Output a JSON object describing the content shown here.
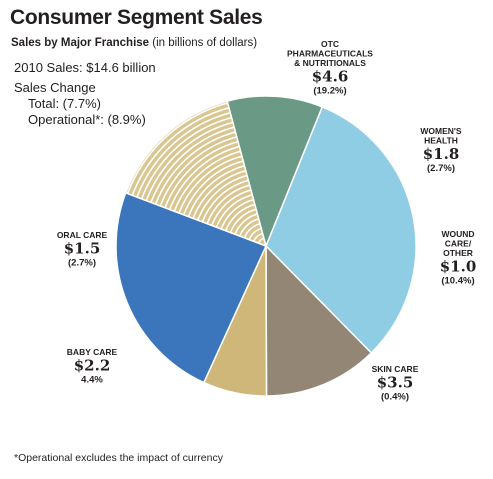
{
  "header": {
    "title": "Consumer Segment Sales",
    "subtitle_bold": "Sales by Major Franchise",
    "subtitle_rest": " (in billions of dollars)"
  },
  "info": {
    "total_sales": "2010 Sales: $14.6 billion",
    "change_heading": "Sales Change",
    "total_change": "Total: (7.7%)",
    "operational_change": "Operational*: (8.9%)"
  },
  "footnote": "*Operational excludes the impact of currency",
  "chart_data": {
    "type": "pie",
    "title": "Consumer Segment Sales",
    "unit": "billions of dollars",
    "slices": [
      {
        "label_lines": [
          "OTC",
          "PHARMACEUTICALS",
          "& NUTRITIONALS"
        ],
        "value": 4.6,
        "value_label": "$4.6",
        "change": "(19.2%)",
        "color": "#8ecde4"
      },
      {
        "label_lines": [
          "WOMEN'S",
          "HEALTH"
        ],
        "value": 1.8,
        "value_label": "$1.8",
        "change": "(2.7%)",
        "color": "#938674"
      },
      {
        "label_lines": [
          "WOUND",
          "CARE/",
          "OTHER"
        ],
        "value": 1.0,
        "value_label": "$1.0",
        "change": "(10.4%)",
        "color": "#cfb779"
      },
      {
        "label_lines": [
          "SKIN CARE"
        ],
        "value": 3.5,
        "value_label": "$3.5",
        "change": "(0.4%)",
        "color": "#3b75bc"
      },
      {
        "label_lines": [
          "BABY CARE"
        ],
        "value": 2.2,
        "value_label": "$2.2",
        "change": "4.4%",
        "color": "#d9c690",
        "pattern": "striped"
      },
      {
        "label_lines": [
          "ORAL CARE"
        ],
        "value": 1.5,
        "value_label": "$1.5",
        "change": "(2.7%)",
        "color": "#6a9a86"
      }
    ]
  }
}
